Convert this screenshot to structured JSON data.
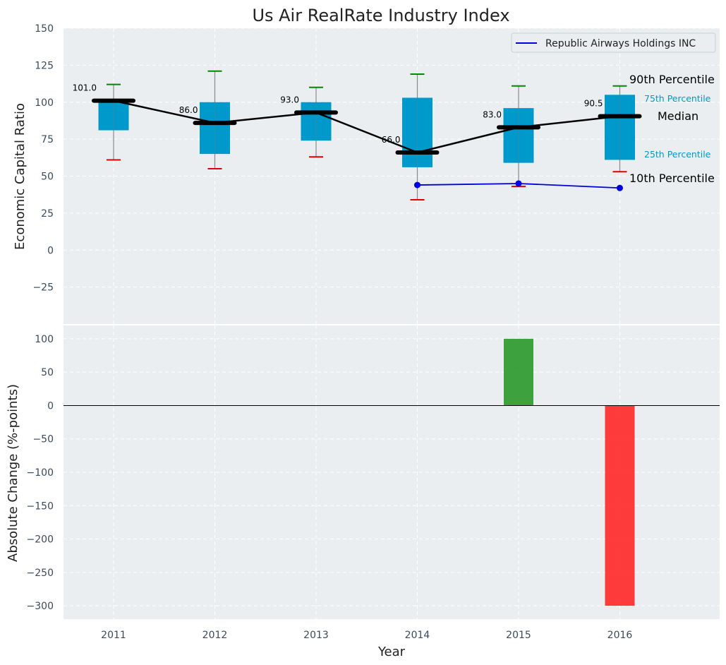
{
  "chart_data": [
    {
      "type": "box",
      "title": "Us Air RealRate Industry Index",
      "ylabel": "Economic Capital Ratio",
      "ylim": [
        -50,
        150
      ],
      "yticks": [
        -25,
        0,
        25,
        50,
        75,
        100,
        125,
        150
      ],
      "ytick_labels": [
        "−25",
        "0",
        "25",
        "50",
        "75",
        "100",
        "125",
        "150"
      ],
      "categories": [
        "2011",
        "2012",
        "2013",
        "2014",
        "2015",
        "2016"
      ],
      "p10": [
        61,
        55,
        63,
        34,
        43,
        53
      ],
      "p25": [
        81,
        65,
        74,
        56,
        59,
        61
      ],
      "median": [
        101.0,
        86.0,
        93.0,
        66.0,
        83.0,
        90.5
      ],
      "p75": [
        101,
        100,
        100,
        103,
        96,
        105
      ],
      "p90": [
        112,
        121,
        110,
        119,
        111,
        111
      ],
      "median_labels": [
        "101.0",
        "86.0",
        "93.0",
        "66.0",
        "83.0",
        "90.5"
      ],
      "series": [
        {
          "name": "Republic Airways Holdings INC",
          "color": "#0000dd",
          "x": [
            "2014",
            "2015",
            "2016"
          ],
          "values": [
            44,
            45,
            42
          ]
        }
      ],
      "legend": {
        "position": "top-right",
        "entries": [
          "Republic Airways Holdings INC"
        ]
      },
      "annotations": {
        "p90": "90th Percentile",
        "p75": "75th Percentile",
        "median": "Median",
        "p25": "25th Percentile",
        "p10": "10th Percentile"
      },
      "grid": true
    },
    {
      "type": "bar",
      "xlabel": "Year",
      "ylabel": "Absolute Change (%-points)",
      "ylim": [
        -320,
        120
      ],
      "yticks": [
        -300,
        -250,
        -200,
        -150,
        -100,
        -50,
        0,
        50,
        100
      ],
      "ytick_labels": [
        "−300",
        "−250",
        "−200",
        "−150",
        "−100",
        "−50",
        "0",
        "50",
        "100"
      ],
      "categories": [
        "2011",
        "2012",
        "2013",
        "2014",
        "2015",
        "2016"
      ],
      "values": [
        0,
        0,
        0,
        0,
        100,
        -300
      ],
      "positive_color": "#2e9a2e",
      "negative_color": "#ff2b2b",
      "grid": true
    }
  ],
  "colors": {
    "box_fill": "#0099cc",
    "plot_bg": "#eaeef0",
    "median_line": "#000000",
    "p10_cap": "#dd0000",
    "p90_cap": "#008800"
  }
}
